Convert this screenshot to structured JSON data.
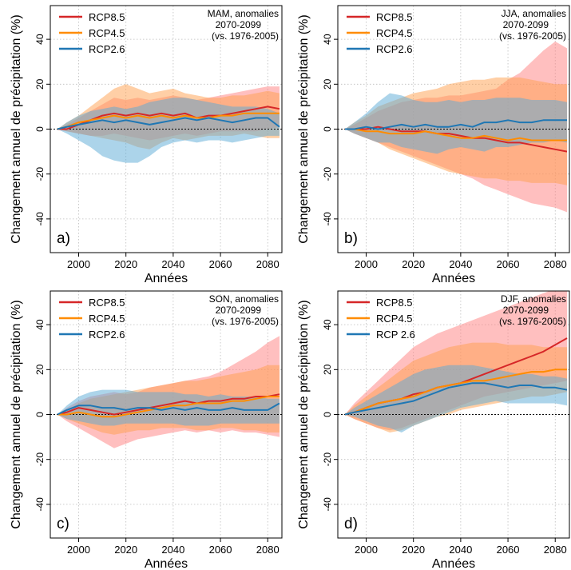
{
  "colors": {
    "rcp85": "#d62728",
    "rcp45": "#ff8c00",
    "rcp26": "#1f77b4",
    "rcp85_band": "#ff8080",
    "rcp45_band": "#ffa04d",
    "rcp26_band": "#5aa9d6",
    "grid": "#bbbbbb"
  },
  "chart_data": [
    {
      "type": "area",
      "panel_label": "a)",
      "season_line": "MAM, anomalies",
      "period_line": "2070-2099",
      "ref_line": "(vs. 1976-2005)",
      "xlabel": "Années",
      "ylabel": "Changement annuel de précipitation (%)",
      "xlim": [
        1988,
        2086
      ],
      "ylim": [
        -55,
        55
      ],
      "x_ticks": [
        2000,
        2020,
        2040,
        2060,
        2080
      ],
      "y_ticks": [
        -40,
        -20,
        0,
        20,
        40
      ],
      "legend_position": "top-left",
      "grid": true,
      "x": [
        1991,
        1995,
        2000,
        2005,
        2010,
        2015,
        2020,
        2025,
        2030,
        2035,
        2040,
        2045,
        2050,
        2055,
        2060,
        2065,
        2070,
        2075,
        2080,
        2085
      ],
      "series": [
        {
          "name": "RCP8.5",
          "color_key": "rcp85",
          "values": [
            0,
            0,
            2,
            4,
            6,
            7,
            6,
            7,
            6,
            7,
            6,
            7,
            5,
            6,
            6,
            7,
            8,
            9,
            10,
            9
          ],
          "lower": [
            0,
            -1,
            -2,
            -3,
            -3,
            -2,
            -3,
            -4,
            -5,
            -4,
            -3,
            -2,
            -3,
            -2,
            -1,
            -1,
            -1,
            -1,
            0,
            1
          ],
          "upper": [
            0,
            2,
            5,
            8,
            11,
            14,
            13,
            14,
            13,
            14,
            15,
            14,
            13,
            14,
            15,
            16,
            17,
            18,
            19,
            19
          ]
        },
        {
          "name": "RCP4.5",
          "color_key": "rcp45",
          "values": [
            0,
            1,
            3,
            4,
            5,
            6,
            5,
            6,
            5,
            6,
            5,
            6,
            5,
            5,
            6,
            6,
            7,
            7,
            7,
            7
          ],
          "lower": [
            0,
            -1,
            -2,
            -3,
            -4,
            -5,
            -6,
            -8,
            -9,
            -6,
            -4,
            -5,
            -4,
            -3,
            -3,
            -3,
            -2,
            -3,
            -4,
            -4
          ],
          "upper": [
            0,
            3,
            6,
            10,
            14,
            18,
            20,
            18,
            16,
            17,
            18,
            16,
            15,
            14,
            14,
            15,
            15,
            16,
            17,
            16
          ]
        },
        {
          "name": "RCP2.6",
          "color_key": "rcp26",
          "values": [
            0,
            1,
            2,
            3,
            4,
            3,
            4,
            3,
            2,
            3,
            4,
            5,
            4,
            5,
            4,
            3,
            4,
            5,
            5,
            1
          ],
          "lower": [
            0,
            -2,
            -5,
            -8,
            -12,
            -14,
            -15,
            -15,
            -12,
            -8,
            -6,
            -5,
            -6,
            -5,
            -5,
            -6,
            -5,
            -4,
            -3,
            -3
          ],
          "upper": [
            0,
            3,
            6,
            8,
            9,
            10,
            9,
            10,
            12,
            13,
            14,
            14,
            13,
            12,
            11,
            10,
            10,
            10,
            9,
            7
          ]
        }
      ]
    },
    {
      "type": "area",
      "panel_label": "b)",
      "season_line": "JJA, anomalies",
      "period_line": "2070-2099",
      "ref_line": "(vs. 1976-2005)",
      "xlabel": "Années",
      "ylabel": "Changement annuel de précipitation (%)",
      "xlim": [
        1988,
        2086
      ],
      "ylim": [
        -55,
        55
      ],
      "x_ticks": [
        2000,
        2020,
        2040,
        2060,
        2080
      ],
      "y_ticks": [
        -40,
        -20,
        0,
        20,
        40
      ],
      "legend_position": "top-left",
      "grid": true,
      "x": [
        1991,
        1995,
        2000,
        2005,
        2010,
        2015,
        2020,
        2025,
        2030,
        2035,
        2040,
        2045,
        2050,
        2055,
        2060,
        2065,
        2070,
        2075,
        2080,
        2085
      ],
      "series": [
        {
          "name": "RCP8.5",
          "color_key": "rcp85",
          "values": [
            0,
            0,
            0,
            1,
            0,
            -1,
            -1,
            -1,
            -2,
            -2,
            -3,
            -4,
            -4,
            -5,
            -6,
            -6,
            -7,
            -8,
            -9,
            -10
          ],
          "lower": [
            0,
            -2,
            -4,
            -6,
            -8,
            -10,
            -12,
            -14,
            -16,
            -18,
            -20,
            -22,
            -25,
            -27,
            -29,
            -31,
            -33,
            -34,
            -35,
            -37
          ],
          "upper": [
            0,
            2,
            5,
            8,
            10,
            12,
            13,
            14,
            14,
            15,
            15,
            16,
            17,
            18,
            22,
            25,
            30,
            35,
            39,
            36
          ]
        },
        {
          "name": "RCP4.5",
          "color_key": "rcp45",
          "values": [
            0,
            0,
            -1,
            -1,
            -2,
            -2,
            -2,
            -1,
            -2,
            -3,
            -4,
            -4,
            -3,
            -4,
            -5,
            -4,
            -5,
            -5,
            -5,
            -5
          ],
          "lower": [
            0,
            -2,
            -4,
            -6,
            -9,
            -11,
            -13,
            -15,
            -17,
            -19,
            -20,
            -21,
            -22,
            -22,
            -23,
            -23,
            -24,
            -24,
            -24,
            -25
          ],
          "upper": [
            0,
            3,
            6,
            10,
            12,
            14,
            16,
            17,
            18,
            20,
            21,
            22,
            22,
            23,
            23,
            23,
            22,
            21,
            20,
            20
          ]
        },
        {
          "name": "RCP2.6",
          "color_key": "rcp26",
          "values": [
            0,
            0,
            1,
            0,
            1,
            2,
            1,
            2,
            1,
            1,
            2,
            1,
            3,
            3,
            4,
            3,
            3,
            4,
            4,
            4
          ],
          "lower": [
            0,
            -2,
            -4,
            -6,
            -6,
            -8,
            -9,
            -10,
            -11,
            -9,
            -8,
            -9,
            -10,
            -8,
            -8,
            -7,
            -6,
            -6,
            -5,
            -6
          ],
          "upper": [
            0,
            3,
            7,
            12,
            16,
            15,
            13,
            12,
            12,
            13,
            12,
            13,
            13,
            14,
            14,
            14,
            13,
            13,
            13,
            12
          ]
        }
      ]
    },
    {
      "type": "area",
      "panel_label": "c)",
      "season_line": "SON, anomalies",
      "period_line": "2070-2099",
      "ref_line": "(vs. 1976-2005)",
      "xlabel": "Années",
      "ylabel": "Changement annuel de précipitation (%)",
      "xlim": [
        1988,
        2086
      ],
      "ylim": [
        -55,
        55
      ],
      "x_ticks": [
        2000,
        2020,
        2040,
        2060,
        2080
      ],
      "y_ticks": [
        -40,
        -20,
        0,
        20,
        40
      ],
      "legend_position": "top-left",
      "grid": true,
      "x": [
        1991,
        1995,
        2000,
        2005,
        2010,
        2015,
        2020,
        2025,
        2030,
        2035,
        2040,
        2045,
        2050,
        2055,
        2060,
        2065,
        2070,
        2075,
        2080,
        2085
      ],
      "series": [
        {
          "name": "RCP8.5",
          "color_key": "rcp85",
          "values": [
            0,
            1,
            3,
            2,
            1,
            0,
            1,
            2,
            3,
            4,
            5,
            6,
            5,
            6,
            6,
            7,
            7,
            8,
            8,
            9
          ],
          "lower": [
            0,
            -3,
            -6,
            -9,
            -12,
            -15,
            -13,
            -11,
            -10,
            -9,
            -8,
            -7,
            -8,
            -7,
            -8,
            -7,
            -8,
            -8,
            -9,
            -10
          ],
          "upper": [
            0,
            3,
            6,
            8,
            9,
            10,
            9,
            10,
            12,
            13,
            14,
            15,
            16,
            17,
            19,
            22,
            25,
            28,
            32,
            35
          ]
        },
        {
          "name": "RCP4.5",
          "color_key": "rcp45",
          "values": [
            0,
            0,
            1,
            0,
            -1,
            -1,
            0,
            1,
            2,
            3,
            4,
            4,
            5,
            5,
            5,
            6,
            6,
            7,
            8,
            8
          ],
          "lower": [
            0,
            -2,
            -4,
            -6,
            -8,
            -9,
            -8,
            -7,
            -7,
            -6,
            -6,
            -6,
            -7,
            -7,
            -6,
            -6,
            -7,
            -7,
            -8,
            -8
          ],
          "upper": [
            0,
            2,
            5,
            7,
            8,
            9,
            10,
            11,
            12,
            13,
            14,
            15,
            15,
            16,
            17,
            18,
            19,
            20,
            22,
            22
          ]
        },
        {
          "name": "RCP2.6",
          "color_key": "rcp26",
          "values": [
            0,
            2,
            4,
            4,
            3,
            3,
            2,
            3,
            3,
            2,
            3,
            2,
            3,
            2,
            2,
            3,
            2,
            2,
            2,
            5
          ],
          "lower": [
            0,
            -2,
            -3,
            -4,
            -5,
            -5,
            -4,
            -4,
            -4,
            -4,
            -4,
            -5,
            -5,
            -5,
            -4,
            -4,
            -4,
            -4,
            -4,
            -4
          ],
          "upper": [
            0,
            4,
            8,
            10,
            11,
            11,
            11,
            10,
            10,
            10,
            10,
            9,
            9,
            8,
            9,
            8,
            8,
            8,
            7,
            7
          ]
        }
      ]
    },
    {
      "type": "area",
      "panel_label": "d)",
      "season_line": "DJF, anomalies",
      "period_line": "2070-2099",
      "ref_line": "(vs. 1976-2005)",
      "xlabel": "Années",
      "ylabel": "Changement annuel de précipitation (%)",
      "xlim": [
        1988,
        2086
      ],
      "ylim": [
        -55,
        55
      ],
      "x_ticks": [
        2000,
        2020,
        2040,
        2060,
        2080
      ],
      "y_ticks": [
        -40,
        -20,
        0,
        20,
        40
      ],
      "legend_position": "top-left",
      "grid": true,
      "x": [
        1991,
        1995,
        2000,
        2005,
        2010,
        2015,
        2020,
        2025,
        2030,
        2035,
        2040,
        2045,
        2050,
        2055,
        2060,
        2065,
        2070,
        2075,
        2080,
        2085
      ],
      "series": [
        {
          "name": "RCP8.5",
          "color_key": "rcp85",
          "values": [
            0,
            1,
            3,
            5,
            6,
            7,
            9,
            10,
            12,
            13,
            14,
            16,
            18,
            20,
            22,
            24,
            26,
            28,
            31,
            34
          ],
          "lower": [
            0,
            -2,
            -4,
            -6,
            -7,
            -6,
            -4,
            -2,
            0,
            2,
            4,
            6,
            8,
            9,
            10,
            11,
            12,
            13,
            14,
            15
          ],
          "upper": [
            0,
            5,
            10,
            15,
            20,
            25,
            30,
            33,
            36,
            38,
            40,
            42,
            44,
            46,
            48,
            50,
            52,
            54,
            56,
            55
          ]
        },
        {
          "name": "RCP4.5",
          "color_key": "rcp45",
          "values": [
            0,
            1,
            3,
            5,
            6,
            7,
            8,
            10,
            12,
            13,
            14,
            15,
            15,
            16,
            17,
            18,
            19,
            19,
            20,
            20
          ],
          "lower": [
            0,
            -2,
            -4,
            -6,
            -8,
            -7,
            -5,
            -3,
            -1,
            0,
            2,
            3,
            4,
            5,
            6,
            7,
            8,
            8,
            9,
            10
          ],
          "upper": [
            0,
            4,
            8,
            12,
            16,
            20,
            24,
            26,
            28,
            30,
            31,
            32,
            32,
            32,
            31,
            31,
            31,
            30,
            30,
            30
          ]
        },
        {
          "name": "RCP 2.6",
          "color_key": "rcp26",
          "values": [
            0,
            1,
            2,
            3,
            4,
            5,
            6,
            8,
            10,
            12,
            13,
            14,
            14,
            13,
            12,
            13,
            13,
            12,
            12,
            11
          ],
          "lower": [
            0,
            -1,
            -3,
            -5,
            -6,
            -8,
            -5,
            -3,
            -1,
            1,
            3,
            4,
            5,
            6,
            5,
            5,
            5,
            5,
            5,
            4
          ],
          "upper": [
            0,
            3,
            6,
            9,
            12,
            15,
            18,
            20,
            21,
            22,
            22,
            22,
            21,
            20,
            19,
            18,
            18,
            17,
            17,
            16
          ]
        }
      ]
    }
  ]
}
